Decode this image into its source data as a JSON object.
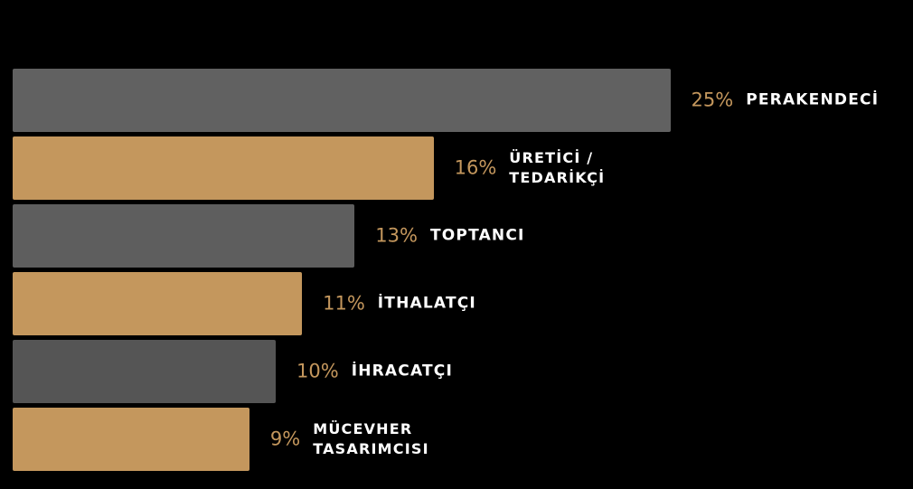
{
  "chart_data": {
    "type": "bar",
    "orientation": "horizontal",
    "categories": [
      "PERAKENDECİ",
      "ÜRETİCİ /\nTEDARİKÇİ",
      "TOPTANCI",
      "İTHALATÇI",
      "İHRACATÇI",
      "MÜCEVHER\nTASARIMCISI"
    ],
    "values": [
      25,
      16,
      13,
      11,
      10,
      9
    ],
    "value_labels": [
      "25%",
      "16%",
      "13%",
      "11%",
      "10%",
      "9%"
    ],
    "bar_colors": [
      "#616161",
      "#c4975d",
      "#5e5e5e",
      "#c4975d",
      "#555555",
      "#c4975d"
    ],
    "value_label_color": "#c4975d",
    "category_label_color": "#ffffff",
    "background": "#000000",
    "grid": false,
    "legend": "none",
    "xlim": [
      0,
      25
    ]
  }
}
